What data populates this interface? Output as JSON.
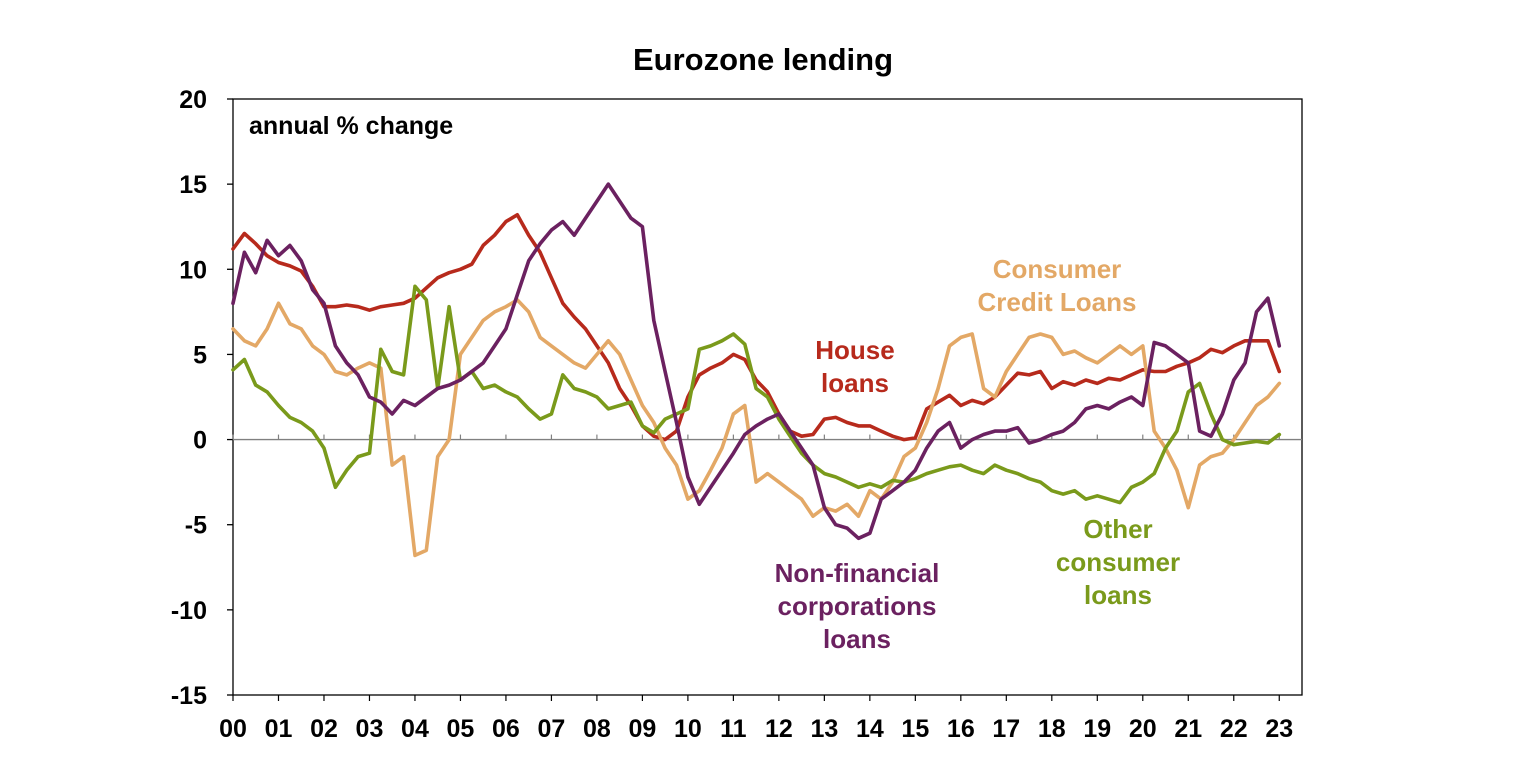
{
  "chart_data": {
    "type": "line",
    "title": "Eurozone lending",
    "unit_label": "annual % change",
    "xlabel": "",
    "ylabel": "",
    "xlim": [
      2000.0,
      2023.5
    ],
    "ylim": [
      -15,
      20
    ],
    "y_ticks": [
      -15,
      -10,
      -5,
      0,
      5,
      10,
      15,
      20
    ],
    "x_ticks": [
      {
        "x": 2000,
        "label": "00"
      },
      {
        "x": 2001,
        "label": "01"
      },
      {
        "x": 2002,
        "label": "02"
      },
      {
        "x": 2003,
        "label": "03"
      },
      {
        "x": 2004,
        "label": "04"
      },
      {
        "x": 2005,
        "label": "05"
      },
      {
        "x": 2006,
        "label": "06"
      },
      {
        "x": 2007,
        "label": "07"
      },
      {
        "x": 2008,
        "label": "08"
      },
      {
        "x": 2009,
        "label": "09"
      },
      {
        "x": 2010,
        "label": "10"
      },
      {
        "x": 2011,
        "label": "11"
      },
      {
        "x": 2012,
        "label": "12"
      },
      {
        "x": 2013,
        "label": "13"
      },
      {
        "x": 2014,
        "label": "14"
      },
      {
        "x": 2015,
        "label": "15"
      },
      {
        "x": 2016,
        "label": "16"
      },
      {
        "x": 2017,
        "label": "17"
      },
      {
        "x": 2018,
        "label": "18"
      },
      {
        "x": 2019,
        "label": "19"
      },
      {
        "x": 2020,
        "label": "20"
      },
      {
        "x": 2021,
        "label": "21"
      },
      {
        "x": 2022,
        "label": "22"
      },
      {
        "x": 2023,
        "label": "23"
      }
    ],
    "grid": false,
    "zero_line": true,
    "legend": "direct labels",
    "series": [
      {
        "name": "House loans",
        "label_lines": [
          "House",
          "loans"
        ],
        "color": "#B72A1C",
        "x": [
          2000.0,
          2000.25,
          2000.5,
          2000.75,
          2001.0,
          2001.25,
          2001.5,
          2001.75,
          2002.0,
          2002.25,
          2002.5,
          2002.75,
          2003.0,
          2003.25,
          2003.5,
          2003.75,
          2004.0,
          2004.25,
          2004.5,
          2004.75,
          2005.0,
          2005.25,
          2005.5,
          2005.75,
          2006.0,
          2006.25,
          2006.5,
          2006.75,
          2007.0,
          2007.25,
          2007.5,
          2007.75,
          2008.0,
          2008.25,
          2008.5,
          2008.75,
          2009.0,
          2009.25,
          2009.5,
          2009.75,
          2010.0,
          2010.25,
          2010.5,
          2010.75,
          2011.0,
          2011.25,
          2011.5,
          2011.75,
          2012.0,
          2012.25,
          2012.5,
          2012.75,
          2013.0,
          2013.25,
          2013.5,
          2013.75,
          2014.0,
          2014.25,
          2014.5,
          2014.75,
          2015.0,
          2015.25,
          2015.5,
          2015.75,
          2016.0,
          2016.25,
          2016.5,
          2016.75,
          2017.0,
          2017.25,
          2017.5,
          2017.75,
          2018.0,
          2018.25,
          2018.5,
          2018.75,
          2019.0,
          2019.25,
          2019.5,
          2019.75,
          2020.0,
          2020.25,
          2020.5,
          2020.75,
          2021.0,
          2021.25,
          2021.5,
          2021.75,
          2022.0,
          2022.25,
          2022.5,
          2022.75,
          2023.0
        ],
        "values": [
          11.2,
          12.1,
          11.5,
          10.8,
          10.4,
          10.2,
          9.9,
          9.0,
          7.8,
          7.8,
          7.9,
          7.8,
          7.6,
          7.8,
          7.9,
          8.0,
          8.3,
          8.9,
          9.5,
          9.8,
          10.0,
          10.3,
          11.4,
          12.0,
          12.8,
          13.2,
          12.0,
          11.0,
          9.5,
          8.0,
          7.2,
          6.5,
          5.5,
          4.5,
          3.0,
          2.0,
          0.8,
          0.2,
          0.0,
          0.5,
          2.5,
          3.8,
          4.2,
          4.5,
          5.0,
          4.7,
          3.5,
          2.8,
          1.5,
          0.5,
          0.2,
          0.3,
          1.2,
          1.3,
          1.0,
          0.8,
          0.8,
          0.5,
          0.2,
          0.0,
          0.1,
          1.8,
          2.2,
          2.6,
          2.0,
          2.3,
          2.1,
          2.5,
          3.2,
          3.9,
          3.8,
          4.0,
          3.0,
          3.4,
          3.2,
          3.5,
          3.3,
          3.6,
          3.5,
          3.8,
          4.1,
          4.0,
          4.0,
          4.3,
          4.5,
          4.8,
          5.3,
          5.1,
          5.5,
          5.8,
          5.8,
          5.8,
          4.0
        ]
      },
      {
        "name": "Consumer Credit Loans",
        "label_lines": [
          "Consumer",
          "Credit Loans"
        ],
        "color": "#E3A866",
        "x": [
          2000.0,
          2000.25,
          2000.5,
          2000.75,
          2001.0,
          2001.25,
          2001.5,
          2001.75,
          2002.0,
          2002.25,
          2002.5,
          2002.75,
          2003.0,
          2003.25,
          2003.5,
          2003.75,
          2004.0,
          2004.25,
          2004.5,
          2004.75,
          2005.0,
          2005.25,
          2005.5,
          2005.75,
          2006.0,
          2006.25,
          2006.5,
          2006.75,
          2007.0,
          2007.25,
          2007.5,
          2007.75,
          2008.0,
          2008.25,
          2008.5,
          2008.75,
          2009.0,
          2009.25,
          2009.5,
          2009.75,
          2010.0,
          2010.25,
          2010.5,
          2010.75,
          2011.0,
          2011.25,
          2011.5,
          2011.75,
          2012.0,
          2012.25,
          2012.5,
          2012.75,
          2013.0,
          2013.25,
          2013.5,
          2013.75,
          2014.0,
          2014.25,
          2014.5,
          2014.75,
          2015.0,
          2015.25,
          2015.5,
          2015.75,
          2016.0,
          2016.25,
          2016.5,
          2016.75,
          2017.0,
          2017.25,
          2017.5,
          2017.75,
          2018.0,
          2018.25,
          2018.5,
          2018.75,
          2019.0,
          2019.25,
          2019.5,
          2019.75,
          2020.0,
          2020.25,
          2020.5,
          2020.75,
          2021.0,
          2021.25,
          2021.5,
          2021.75,
          2022.0,
          2022.25,
          2022.5,
          2022.75,
          2023.0
        ],
        "values": [
          6.5,
          5.8,
          5.5,
          6.5,
          8.0,
          6.8,
          6.5,
          5.5,
          5.0,
          4.0,
          3.8,
          4.2,
          4.5,
          4.2,
          -1.5,
          -1.0,
          -6.8,
          -6.5,
          -1.0,
          0.0,
          5.0,
          6.0,
          7.0,
          7.5,
          7.8,
          8.2,
          7.5,
          6.0,
          5.5,
          5.0,
          4.5,
          4.2,
          5.0,
          5.8,
          5.0,
          3.5,
          2.0,
          1.0,
          -0.5,
          -1.5,
          -3.5,
          -3.0,
          -1.8,
          -0.5,
          1.5,
          2.0,
          -2.5,
          -2.0,
          -2.5,
          -3.0,
          -3.5,
          -4.5,
          -4.0,
          -4.2,
          -3.8,
          -4.5,
          -3.0,
          -3.5,
          -2.5,
          -1.0,
          -0.5,
          1.0,
          3.0,
          5.5,
          6.0,
          6.2,
          3.0,
          2.5,
          4.0,
          5.0,
          6.0,
          6.2,
          6.0,
          5.0,
          5.2,
          4.8,
          4.5,
          5.0,
          5.5,
          5.0,
          5.5,
          0.5,
          -0.5,
          -1.8,
          -4.0,
          -1.5,
          -1.0,
          -0.8,
          0.0,
          1.0,
          2.0,
          2.5,
          3.3
        ]
      },
      {
        "name": "Other consumer loans",
        "label_lines": [
          "Other",
          "consumer",
          "loans"
        ],
        "color": "#7A9A1B",
        "x": [
          2000.0,
          2000.25,
          2000.5,
          2000.75,
          2001.0,
          2001.25,
          2001.5,
          2001.75,
          2002.0,
          2002.25,
          2002.5,
          2002.75,
          2003.0,
          2003.25,
          2003.5,
          2003.75,
          2004.0,
          2004.25,
          2004.5,
          2004.75,
          2005.0,
          2005.25,
          2005.5,
          2005.75,
          2006.0,
          2006.25,
          2006.5,
          2006.75,
          2007.0,
          2007.25,
          2007.5,
          2007.75,
          2008.0,
          2008.25,
          2008.5,
          2008.75,
          2009.0,
          2009.25,
          2009.5,
          2009.75,
          2010.0,
          2010.25,
          2010.5,
          2010.75,
          2011.0,
          2011.25,
          2011.5,
          2011.75,
          2012.0,
          2012.25,
          2012.5,
          2012.75,
          2013.0,
          2013.25,
          2013.5,
          2013.75,
          2014.0,
          2014.25,
          2014.5,
          2014.75,
          2015.0,
          2015.25,
          2015.5,
          2015.75,
          2016.0,
          2016.25,
          2016.5,
          2016.75,
          2017.0,
          2017.25,
          2017.5,
          2017.75,
          2018.0,
          2018.25,
          2018.5,
          2018.75,
          2019.0,
          2019.25,
          2019.5,
          2019.75,
          2020.0,
          2020.25,
          2020.5,
          2020.75,
          2021.0,
          2021.25,
          2021.5,
          2021.75,
          2022.0,
          2022.25,
          2022.5,
          2022.75,
          2023.0
        ],
        "values": [
          4.1,
          4.7,
          3.2,
          2.8,
          2.0,
          1.3,
          1.0,
          0.5,
          -0.5,
          -2.8,
          -1.8,
          -1.0,
          -0.8,
          5.3,
          4.0,
          3.8,
          9.0,
          8.2,
          3.0,
          7.8,
          3.5,
          4.0,
          3.0,
          3.2,
          2.8,
          2.5,
          1.8,
          1.2,
          1.5,
          3.8,
          3.0,
          2.8,
          2.5,
          1.8,
          2.0,
          2.2,
          0.8,
          0.4,
          1.2,
          1.5,
          1.8,
          5.3,
          5.5,
          5.8,
          6.2,
          5.6,
          3.0,
          2.5,
          1.2,
          0.2,
          -0.8,
          -1.5,
          -2.0,
          -2.2,
          -2.5,
          -2.8,
          -2.6,
          -2.8,
          -2.4,
          -2.5,
          -2.3,
          -2.0,
          -1.8,
          -1.6,
          -1.5,
          -1.8,
          -2.0,
          -1.5,
          -1.8,
          -2.0,
          -2.3,
          -2.5,
          -3.0,
          -3.2,
          -3.0,
          -3.5,
          -3.3,
          -3.5,
          -3.7,
          -2.8,
          -2.5,
          -2.0,
          -0.5,
          0.5,
          2.8,
          3.3,
          1.5,
          0.0,
          -0.3,
          -0.2,
          -0.1,
          -0.2,
          0.3
        ]
      },
      {
        "name": "Non-financial corporations loans",
        "label_lines": [
          "Non-financial",
          "corporations",
          "loans"
        ],
        "color": "#6B2160",
        "x": [
          2000.0,
          2000.25,
          2000.5,
          2000.75,
          2001.0,
          2001.25,
          2001.5,
          2001.75,
          2002.0,
          2002.25,
          2002.5,
          2002.75,
          2003.0,
          2003.25,
          2003.5,
          2003.75,
          2004.0,
          2004.25,
          2004.5,
          2004.75,
          2005.0,
          2005.25,
          2005.5,
          2005.75,
          2006.0,
          2006.25,
          2006.5,
          2006.75,
          2007.0,
          2007.25,
          2007.5,
          2007.75,
          2008.0,
          2008.25,
          2008.5,
          2008.75,
          2009.0,
          2009.25,
          2009.5,
          2009.75,
          2010.0,
          2010.25,
          2010.5,
          2010.75,
          2011.0,
          2011.25,
          2011.5,
          2011.75,
          2012.0,
          2012.25,
          2012.5,
          2012.75,
          2013.0,
          2013.25,
          2013.5,
          2013.75,
          2014.0,
          2014.25,
          2014.5,
          2014.75,
          2015.0,
          2015.25,
          2015.5,
          2015.75,
          2016.0,
          2016.25,
          2016.5,
          2016.75,
          2017.0,
          2017.25,
          2017.5,
          2017.75,
          2018.0,
          2018.25,
          2018.5,
          2018.75,
          2019.0,
          2019.25,
          2019.5,
          2019.75,
          2020.0,
          2020.25,
          2020.5,
          2020.75,
          2021.0,
          2021.25,
          2021.5,
          2021.75,
          2022.0,
          2022.25,
          2022.5,
          2022.75,
          2023.0
        ],
        "values": [
          8.0,
          11.0,
          9.8,
          11.7,
          10.8,
          11.4,
          10.5,
          8.8,
          8.0,
          5.5,
          4.5,
          3.8,
          2.5,
          2.2,
          1.5,
          2.3,
          2.0,
          2.5,
          3.0,
          3.2,
          3.5,
          4.0,
          4.5,
          5.5,
          6.5,
          8.5,
          10.5,
          11.5,
          12.3,
          12.8,
          12.0,
          13.0,
          14.0,
          15.0,
          14.0,
          13.0,
          12.5,
          7.0,
          4.0,
          1.0,
          -2.2,
          -3.8,
          -2.8,
          -1.8,
          -0.8,
          0.3,
          0.8,
          1.2,
          1.5,
          0.5,
          -0.5,
          -1.5,
          -4.0,
          -5.0,
          -5.2,
          -5.8,
          -5.5,
          -3.5,
          -3.0,
          -2.5,
          -1.8,
          -0.5,
          0.5,
          1.0,
          -0.5,
          0.0,
          0.3,
          0.5,
          0.5,
          0.7,
          -0.2,
          0.0,
          0.3,
          0.5,
          1.0,
          1.8,
          2.0,
          1.8,
          2.2,
          2.5,
          2.0,
          5.7,
          5.5,
          5.0,
          4.5,
          0.5,
          0.2,
          1.5,
          3.5,
          4.5,
          7.5,
          8.3,
          5.5
        ]
      }
    ]
  }
}
